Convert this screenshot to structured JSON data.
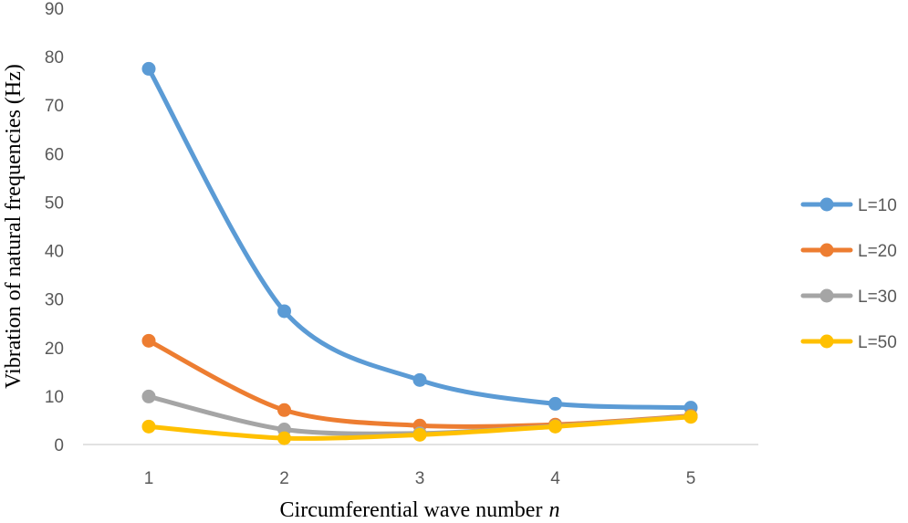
{
  "chart_data": {
    "type": "line",
    "title": "",
    "xlabel": "Circumferential wave number",
    "xlabel_var": "n",
    "ylabel": "Vibration of natural frequencies (Hz)",
    "x": [
      1,
      2,
      3,
      4,
      5
    ],
    "x_tick_labels": [
      "1",
      "2",
      "3",
      "4",
      "5"
    ],
    "ylim": [
      0,
      90
    ],
    "y_ticks": [
      0,
      10,
      20,
      30,
      40,
      50,
      60,
      70,
      80,
      90
    ],
    "grid": false,
    "legend_position": "right",
    "smooth": true,
    "series": [
      {
        "name": "L=10",
        "color": "#5B9BD5",
        "values": [
          77.5,
          27.5,
          13.3,
          8.4,
          7.6
        ]
      },
      {
        "name": "L=20",
        "color": "#ED7D31",
        "values": [
          21.4,
          7.1,
          3.9,
          4.1,
          5.9
        ]
      },
      {
        "name": "L=30",
        "color": "#A5A5A5",
        "values": [
          9.9,
          3.1,
          2.3,
          3.8,
          5.8
        ]
      },
      {
        "name": "L=50",
        "color": "#FFC000",
        "values": [
          3.7,
          1.3,
          2.0,
          3.7,
          5.7
        ]
      }
    ]
  }
}
